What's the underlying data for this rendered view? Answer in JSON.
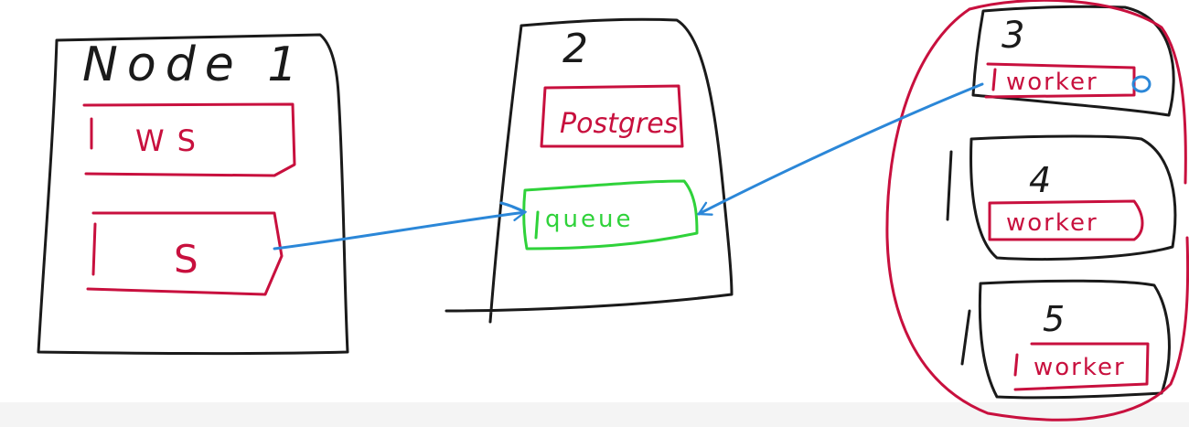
{
  "diagram": {
    "colors": {
      "ink": "#1a1a1a",
      "red": "#c8103e",
      "green": "#2fd23a",
      "blue": "#2b87d8"
    },
    "nodes": [
      {
        "id": "node1",
        "label": "Node 1",
        "components": [
          "WS",
          "S"
        ]
      },
      {
        "id": "node2",
        "label": "2",
        "components": [
          "Postgres",
          "queue"
        ]
      },
      {
        "id": "node3",
        "label": "3",
        "components": [
          "worker"
        ]
      },
      {
        "id": "node4",
        "label": "4",
        "components": [
          "worker"
        ]
      },
      {
        "id": "node5",
        "label": "5",
        "components": [
          "worker"
        ]
      }
    ],
    "labels": {
      "node1_title": "Node 1",
      "node1_ws": "WS",
      "node1_s": "S",
      "node2_title": "2",
      "node2_db": "Postgres",
      "node2_queue": "queue",
      "node3_title": "3",
      "node3_worker": "worker",
      "node4_title": "4",
      "node4_worker": "worker",
      "node5_title": "5",
      "node5_worker": "worker"
    },
    "edges": [
      {
        "from": "S",
        "to": "queue"
      },
      {
        "from": "worker (node 3)",
        "to": "queue"
      }
    ]
  }
}
